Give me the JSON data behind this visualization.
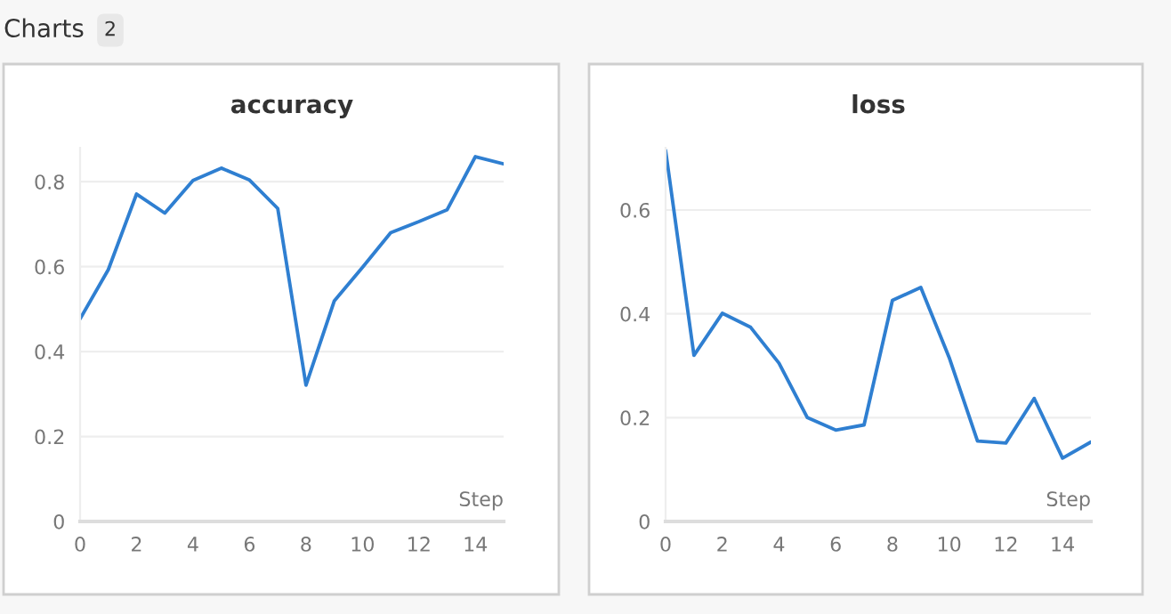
{
  "chart_data": [
    {
      "type": "line",
      "title": "accuracy",
      "xlabel": "Step",
      "annotations": [
        "Charts",
        "2"
      ],
      "x": [
        0,
        1,
        2,
        3,
        4,
        5,
        6,
        7,
        8,
        9,
        10,
        11,
        12,
        13,
        14,
        15
      ],
      "series": [
        {
          "color": "#2f7fd1",
          "values": [
            0.477,
            0.593,
            0.771,
            0.726,
            0.803,
            0.832,
            0.804,
            0.737,
            0.321,
            0.519,
            0.598,
            0.68,
            0.706,
            0.734,
            0.859,
            0.842
          ]
        }
      ],
      "xlim": [
        0,
        15
      ],
      "xticks": [
        0,
        2,
        4,
        6,
        8,
        10,
        12,
        14
      ],
      "ylim": [
        0,
        0.88
      ],
      "yticks": [
        0,
        0.2,
        0.4,
        0.6,
        0.8
      ],
      "grid": "y"
    },
    {
      "type": "line",
      "title": "loss",
      "xlabel": "Step",
      "x": [
        0,
        1,
        2,
        3,
        4,
        5,
        6,
        7,
        8,
        9,
        10,
        11,
        12,
        13,
        14,
        15
      ],
      "series": [
        {
          "color": "#2f7fd1",
          "values": [
            0.715,
            0.32,
            0.401,
            0.374,
            0.305,
            0.2,
            0.176,
            0.186,
            0.426,
            0.451,
            0.316,
            0.155,
            0.151,
            0.237,
            0.122,
            0.153
          ]
        }
      ],
      "xlim": [
        0,
        15
      ],
      "xticks": [
        0,
        2,
        4,
        6,
        8,
        10,
        12,
        14
      ],
      "ylim": [
        0,
        0.72
      ],
      "yticks": [
        0,
        0.2,
        0.4,
        0.6
      ],
      "grid": "y"
    }
  ]
}
